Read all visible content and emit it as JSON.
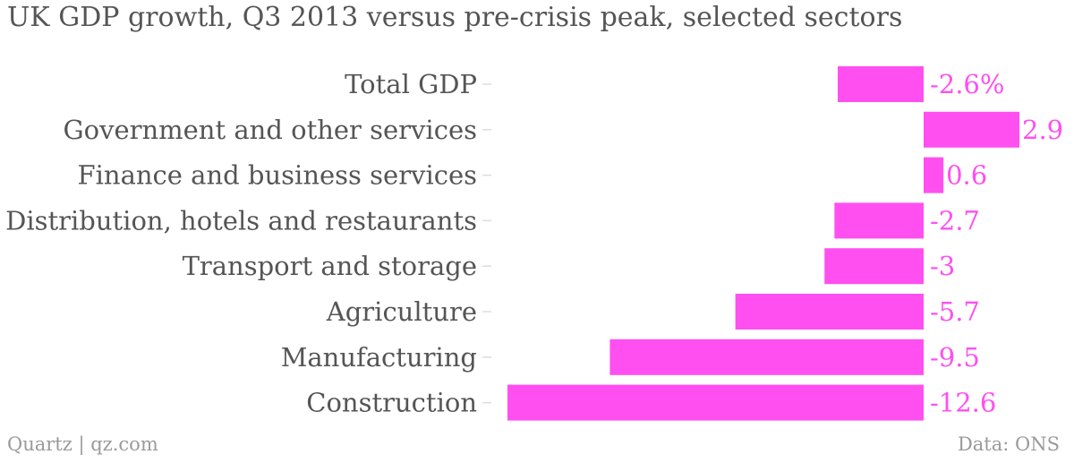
{
  "title": "UK GDP growth, Q3 2013 versus pre-crisis peak, selected sectors",
  "footer": {
    "source_left": "Quartz | qz.com",
    "source_right": "Data: ONS"
  },
  "colors": {
    "bar": "#ff4ff0",
    "value_text": "#ff4ff0",
    "label_text": "#555555",
    "tick": "#dddddd"
  },
  "chart_data": {
    "type": "bar",
    "orientation": "horizontal",
    "title": "UK GDP growth, Q3 2013 versus pre-crisis peak, selected sectors",
    "categories": [
      "Total GDP",
      "Government and other services",
      "Finance and business services",
      "Distribution, hotels and restaurants",
      "Transport and storage",
      "Agriculture",
      "Manufacturing",
      "Construction"
    ],
    "values": [
      -2.6,
      2.9,
      0.6,
      -2.7,
      -3,
      -5.7,
      -9.5,
      -12.6
    ],
    "value_labels": [
      "-2.6%",
      "2.9",
      "0.6",
      "-2.7",
      "-3",
      "-5.7",
      "-9.5",
      "-12.6"
    ],
    "xlim": [
      -12.6,
      2.9
    ],
    "grid": false,
    "legend": "none"
  }
}
